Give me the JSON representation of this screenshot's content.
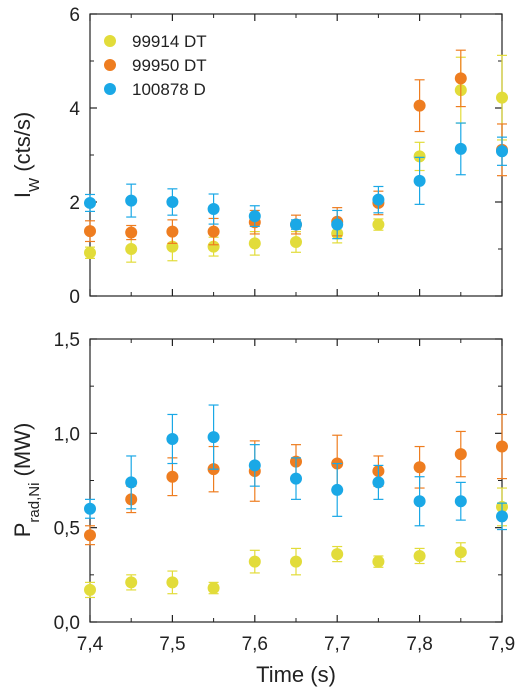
{
  "chart_data": [
    {
      "type": "scatter",
      "panel": "top",
      "ylabel": "I",
      "ylabel_sub": "W",
      "ylabel_rest": " (cts/s)",
      "xlim": [
        7.4,
        7.9
      ],
      "ylim": [
        0,
        6
      ],
      "y_ticks": [
        0,
        2,
        4,
        6
      ],
      "y_tick_labels": [
        "0",
        "2",
        "4",
        "6"
      ],
      "legend_position": "top-left",
      "series": [
        {
          "name": "99914 DT",
          "color": "#e2dc3a",
          "x": [
            7.4,
            7.45,
            7.5,
            7.55,
            7.6,
            7.65,
            7.7,
            7.75,
            7.8,
            7.85,
            7.9
          ],
          "y": [
            0.92,
            1.0,
            1.05,
            1.05,
            1.12,
            1.15,
            1.33,
            1.52,
            2.97,
            4.38,
            4.22
          ],
          "err": [
            0.12,
            0.28,
            0.3,
            0.2,
            0.25,
            0.22,
            0.2,
            0.12,
            0.3,
            0.7,
            0.9
          ]
        },
        {
          "name": "99950 DT",
          "color": "#ee7d20",
          "x": [
            7.4,
            7.45,
            7.5,
            7.55,
            7.6,
            7.65,
            7.7,
            7.75,
            7.8,
            7.85,
            7.9
          ],
          "y": [
            1.38,
            1.35,
            1.37,
            1.37,
            1.57,
            1.52,
            1.58,
            1.98,
            4.05,
            4.63,
            3.11
          ],
          "err": [
            0.22,
            0.15,
            0.25,
            0.28,
            0.25,
            0.2,
            0.3,
            0.25,
            0.55,
            0.6,
            0.55
          ]
        },
        {
          "name": "100878 D",
          "color": "#1aa8e6",
          "x": [
            7.4,
            7.45,
            7.5,
            7.55,
            7.6,
            7.65,
            7.7,
            7.75,
            7.8,
            7.85,
            7.9
          ],
          "y": [
            1.98,
            2.03,
            2.0,
            1.85,
            1.7,
            1.52,
            1.52,
            2.05,
            2.45,
            3.13,
            3.08
          ],
          "err": [
            0.18,
            0.35,
            0.28,
            0.32,
            0.22,
            0.1,
            0.3,
            0.28,
            0.5,
            0.55,
            0.3
          ]
        }
      ]
    },
    {
      "type": "scatter",
      "panel": "bottom",
      "ylabel": "P",
      "ylabel_sub": "rad,Ni",
      "ylabel_rest": " (MW)",
      "xlabel": "Time (s)",
      "xlim": [
        7.4,
        7.9
      ],
      "ylim": [
        0,
        1.5
      ],
      "y_ticks": [
        0,
        0.5,
        1.0,
        1.5
      ],
      "y_tick_labels": [
        "0,0",
        "0,5",
        "1,0",
        "1,5"
      ],
      "x_ticks": [
        7.4,
        7.5,
        7.6,
        7.7,
        7.8,
        7.9
      ],
      "x_tick_labels": [
        "7,4",
        "7,5",
        "7,6",
        "7,7",
        "7,8",
        "7,9"
      ],
      "series": [
        {
          "color": "#e2dc3a",
          "x": [
            7.4,
            7.45,
            7.5,
            7.55,
            7.6,
            7.65,
            7.7,
            7.75,
            7.8,
            7.85,
            7.9
          ],
          "y": [
            0.17,
            0.21,
            0.21,
            0.18,
            0.32,
            0.32,
            0.36,
            0.32,
            0.35,
            0.37,
            0.61
          ],
          "err": [
            0.04,
            0.04,
            0.06,
            0.03,
            0.06,
            0.07,
            0.04,
            0.03,
            0.04,
            0.05,
            0.1
          ]
        },
        {
          "color": "#ee7d20",
          "x": [
            7.4,
            7.45,
            7.5,
            7.55,
            7.6,
            7.65,
            7.7,
            7.75,
            7.8,
            7.85,
            7.9
          ],
          "y": [
            0.46,
            0.65,
            0.77,
            0.81,
            0.8,
            0.85,
            0.84,
            0.8,
            0.82,
            0.89,
            0.93
          ],
          "err": [
            0.05,
            0.07,
            0.1,
            0.12,
            0.16,
            0.09,
            0.15,
            0.08,
            0.11,
            0.12,
            0.17
          ]
        },
        {
          "color": "#1aa8e6",
          "x": [
            7.4,
            7.45,
            7.5,
            7.55,
            7.6,
            7.65,
            7.7,
            7.75,
            7.8,
            7.85,
            7.9
          ],
          "y": [
            0.6,
            0.74,
            0.97,
            0.98,
            0.83,
            0.76,
            0.7,
            0.74,
            0.64,
            0.64,
            0.56
          ],
          "err": [
            0.05,
            0.14,
            0.13,
            0.17,
            0.11,
            0.11,
            0.14,
            0.09,
            0.13,
            0.1,
            0.07
          ]
        }
      ]
    }
  ]
}
